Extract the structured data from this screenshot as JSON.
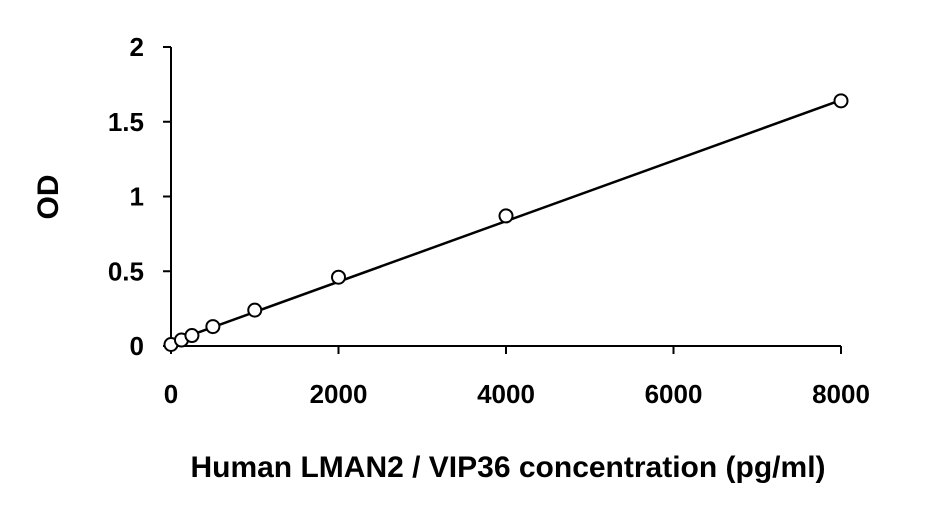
{
  "chart_data": {
    "type": "scatter",
    "title": "",
    "xlabel": "Human LMAN2 / VIP36 concentration (pg/ml)",
    "ylabel": "OD",
    "xlim": [
      0,
      8000
    ],
    "ylim": [
      0,
      2
    ],
    "x_ticks": [
      0,
      2000,
      4000,
      6000,
      8000
    ],
    "y_ticks": [
      0,
      0.5,
      1,
      1.5,
      2
    ],
    "x_tick_labels": [
      "0",
      "2000",
      "4000",
      "6000",
      "8000"
    ],
    "y_tick_labels": [
      "0",
      "0.5",
      "1",
      "1.5",
      "2"
    ],
    "grid": false,
    "legend": "none",
    "series": [
      {
        "marker": "open-circle",
        "points": [
          {
            "x": 0,
            "y": 0.01
          },
          {
            "x": 125,
            "y": 0.04
          },
          {
            "x": 250,
            "y": 0.07
          },
          {
            "x": 500,
            "y": 0.13
          },
          {
            "x": 1000,
            "y": 0.24
          },
          {
            "x": 2000,
            "y": 0.46
          },
          {
            "x": 4000,
            "y": 0.87
          },
          {
            "x": 8000,
            "y": 1.64
          }
        ]
      }
    ],
    "fit_line": {
      "type": "linear",
      "x": [
        0,
        8000
      ],
      "y": [
        0.025,
        1.645
      ]
    },
    "colors": {
      "marker_stroke": "#000000",
      "marker_fill": "#ffffff",
      "line": "#000000",
      "axis": "#000000"
    }
  }
}
